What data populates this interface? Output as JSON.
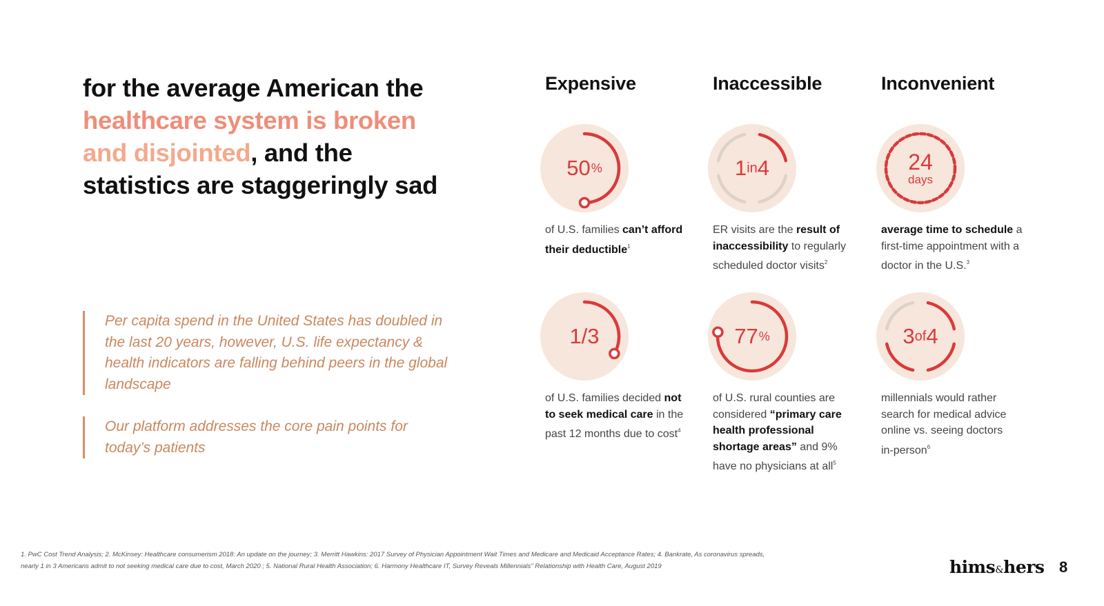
{
  "headline": {
    "part1": "for the average American the",
    "accent": "healthcare system is broken",
    "accent2": "and disjointed",
    "part2": ", and the",
    "part3": "statistics are staggeringly sad"
  },
  "quotes": [
    "Per capita spend in the United States has doubled in the last 20 years, however, U.S. life expectancy & health indicators are falling behind peers in the global landscape",
    "Our platform addresses the core pain points for today’s patients"
  ],
  "columns": [
    "Expensive",
    "Inaccessible",
    "Inconvenient"
  ],
  "stats": [
    {
      "value": "50",
      "unit": "%",
      "progress": 0.5,
      "desc": [
        [
          "",
          "of U.S. families "
        ],
        [
          "b",
          "can’t afford their deductible"
        ],
        [
          "sup",
          "1"
        ]
      ]
    },
    {
      "v1": "1",
      "mid": "in",
      "v2": "4",
      "progress": 0.25,
      "desc": [
        [
          "",
          "ER visits are the "
        ],
        [
          "b",
          "result of inaccessibility"
        ],
        [
          "",
          " to regularly scheduled doctor visits"
        ],
        [
          "sup",
          "2"
        ]
      ]
    },
    {
      "value": "24",
      "unit": "days",
      "progress": 1.0,
      "desc": [
        [
          "b",
          "average time to schedule"
        ],
        [
          "",
          " a first-time appointment with a doctor in the U.S."
        ],
        [
          "sup",
          "3"
        ]
      ]
    },
    {
      "value": "1/3",
      "progress": 0.333,
      "desc": [
        [
          "",
          "of U.S. families decided "
        ],
        [
          "b",
          "not to seek medical care"
        ],
        [
          "",
          " in the past 12 months due to cost"
        ],
        [
          "sup",
          "4"
        ]
      ]
    },
    {
      "value": "77",
      "unit": "%",
      "progress": 0.77,
      "desc": [
        [
          "",
          "of U.S. rural counties are considered "
        ],
        [
          "b",
          "“primary care health professional shortage areas”"
        ],
        [
          "",
          " and 9% have no physicians at all"
        ],
        [
          "sup",
          "5"
        ]
      ]
    },
    {
      "v1": "3",
      "mid": "of",
      "v2": "4",
      "progress": 0.75,
      "desc": [
        [
          "",
          "millennials would rather search for medical advice online vs. seeing doctors in-person"
        ],
        [
          "sup",
          "6"
        ]
      ]
    }
  ],
  "footnote": "1. PwC Cost Trend Analysis; 2. McKinsey: Healthcare consumerism 2018: An update on the journey; 3. Merritt Hawkins: 2017 Survey of Physician Appointment Wait Times and Medicare and Medicaid Acceptance Rates; 4. Bankrate, As coronavirus spreads, nearly 1 in 3 Americans admit to not seeking medical care due to cost, March 2020 ; 5. National Rural Health Association; 6. Harmony Healthcare IT, Survey Reveals Millennials\" Relationship with Health Care, August 2019",
  "logo": {
    "left": "hims",
    "amp": "&",
    "right": "hers"
  },
  "page_number": "8",
  "colors": {
    "accent_red": "#d93a3a",
    "circle_bg": "#f6e6dc",
    "track": "#ddd2c9",
    "quote": "#c9875e",
    "headline_accent": "#ef8d79"
  }
}
